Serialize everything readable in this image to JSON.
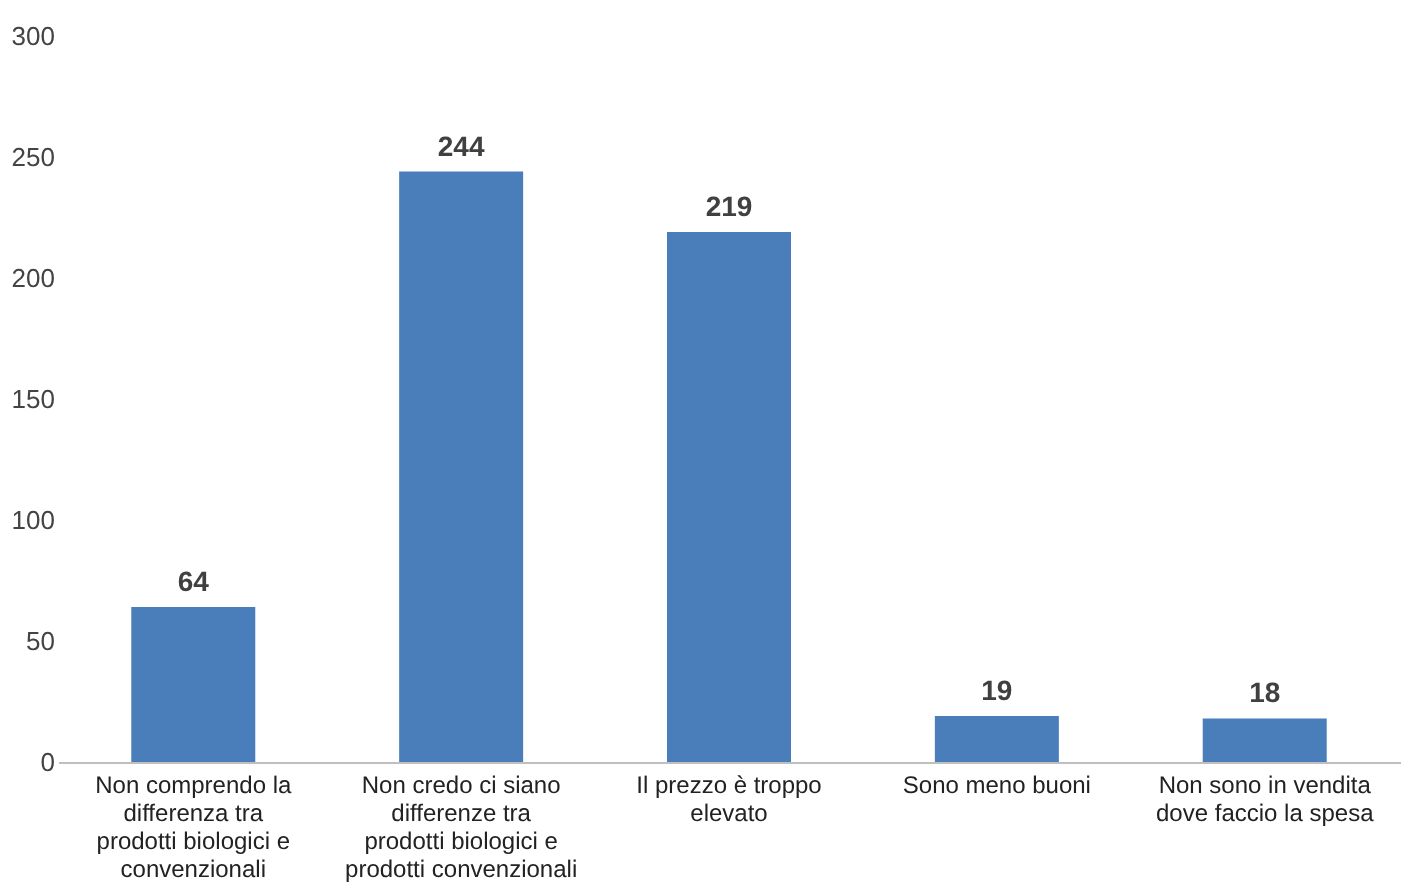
{
  "chart_data": {
    "type": "bar",
    "categories": [
      "Non comprendo la differenza tra prodotti biologici e convenzionali",
      "Non credo ci siano differenze tra prodotti biologici e prodotti convenzionali",
      "Il prezzo è troppo elevato",
      "Sono meno buoni",
      "Non sono in vendita dove faccio la spesa"
    ],
    "values": [
      64,
      244,
      219,
      19,
      18
    ],
    "color": "#4a7ebb",
    "ylim": [
      0,
      300
    ],
    "yticks": [
      0,
      50,
      100,
      150,
      200,
      250,
      300
    ],
    "grid": false,
    "data_labels": true
  }
}
